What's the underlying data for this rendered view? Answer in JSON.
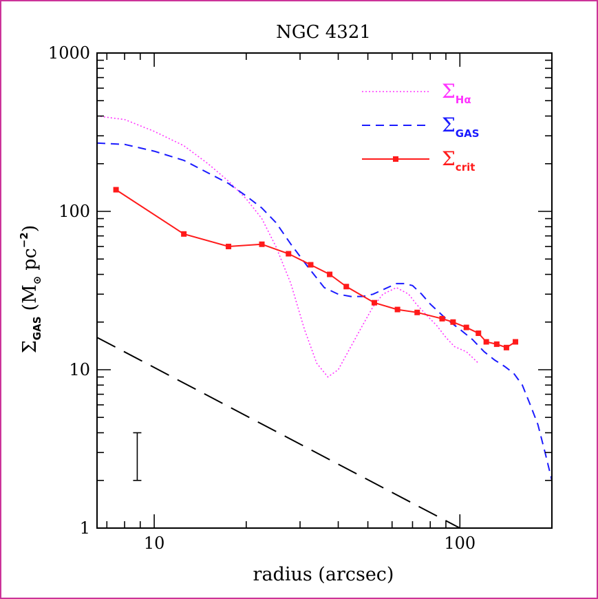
{
  "chart_data": {
    "type": "line",
    "title": "NGC 4321",
    "xlabel": "radius (arcsec)",
    "ylabel_main": "Σ",
    "ylabel_sub": "GAS",
    "ylabel_rest": "(M",
    "ylabel_sun": "⊙",
    "ylabel_unit": "pc",
    "ylabel_exp": "−2",
    "ylabel_close": ")",
    "x_scale": "log",
    "y_scale": "log",
    "xlim": [
      6.5,
      200
    ],
    "ylim": [
      1,
      1000
    ],
    "x_tick_labels": [
      "10",
      "100"
    ],
    "x_tick_values": [
      10,
      100
    ],
    "y_tick_labels": [
      "1",
      "10",
      "100",
      "1000"
    ],
    "y_tick_values": [
      1,
      10,
      100,
      1000
    ],
    "legend_position": "top-right",
    "series": [
      {
        "name_main": "Σ",
        "name_sub": "Hα",
        "style": "dotted",
        "color": "#ff33ff",
        "x": [
          6.5,
          8,
          10,
          12.5,
          15,
          17.5,
          20,
          22.5,
          25,
          28,
          31,
          34,
          37,
          40,
          44,
          48,
          52,
          56,
          62,
          68,
          72,
          78,
          84,
          90,
          96,
          105,
          115
        ],
        "y": [
          400,
          380,
          320,
          260,
          200,
          155,
          120,
          90,
          60,
          35,
          18,
          11,
          9,
          10,
          14,
          19,
          25,
          30,
          33,
          30,
          26,
          22,
          19,
          16,
          14,
          13,
          11
        ]
      },
      {
        "name_main": "Σ",
        "name_sub": "GAS",
        "style": "short-dashed",
        "color": "#1a1aff",
        "x": [
          6.5,
          8,
          10,
          12.5,
          15,
          17.5,
          20,
          22.5,
          25,
          28,
          32,
          36,
          40,
          44,
          48,
          52,
          56,
          62,
          66,
          70,
          75,
          80,
          90,
          100,
          110,
          120,
          130,
          140,
          150,
          160,
          170,
          180,
          190,
          200
        ],
        "y": [
          270,
          265,
          240,
          210,
          175,
          150,
          125,
          105,
          85,
          62,
          44,
          33,
          30,
          29,
          29,
          30,
          32,
          35,
          35,
          34,
          30,
          26,
          21,
          18,
          15.5,
          13,
          11.5,
          10.5,
          9.5,
          8,
          6,
          4.5,
          3,
          2
        ]
      },
      {
        "name_main": "Σ",
        "name_sub": "crit",
        "style": "solid-markers",
        "color": "#ff1a1a",
        "x": [
          7.5,
          12.5,
          17.5,
          22.5,
          27.5,
          32.5,
          37.5,
          42.5,
          52.5,
          62.5,
          72.5,
          87.5,
          95,
          105,
          115,
          122,
          132,
          142,
          152
        ],
        "y": [
          137,
          72,
          60,
          62,
          54,
          46,
          40,
          33.5,
          26.5,
          24,
          23,
          21,
          20,
          18.5,
          17,
          15,
          14.5,
          13.8,
          15
        ]
      },
      {
        "style": "long-dashed",
        "color": "#000000",
        "x": [
          6.5,
          100
        ],
        "y": [
          16,
          1
        ]
      }
    ],
    "error_bar": {
      "x": 8.8,
      "y_low": 2,
      "y_high": 4
    }
  }
}
